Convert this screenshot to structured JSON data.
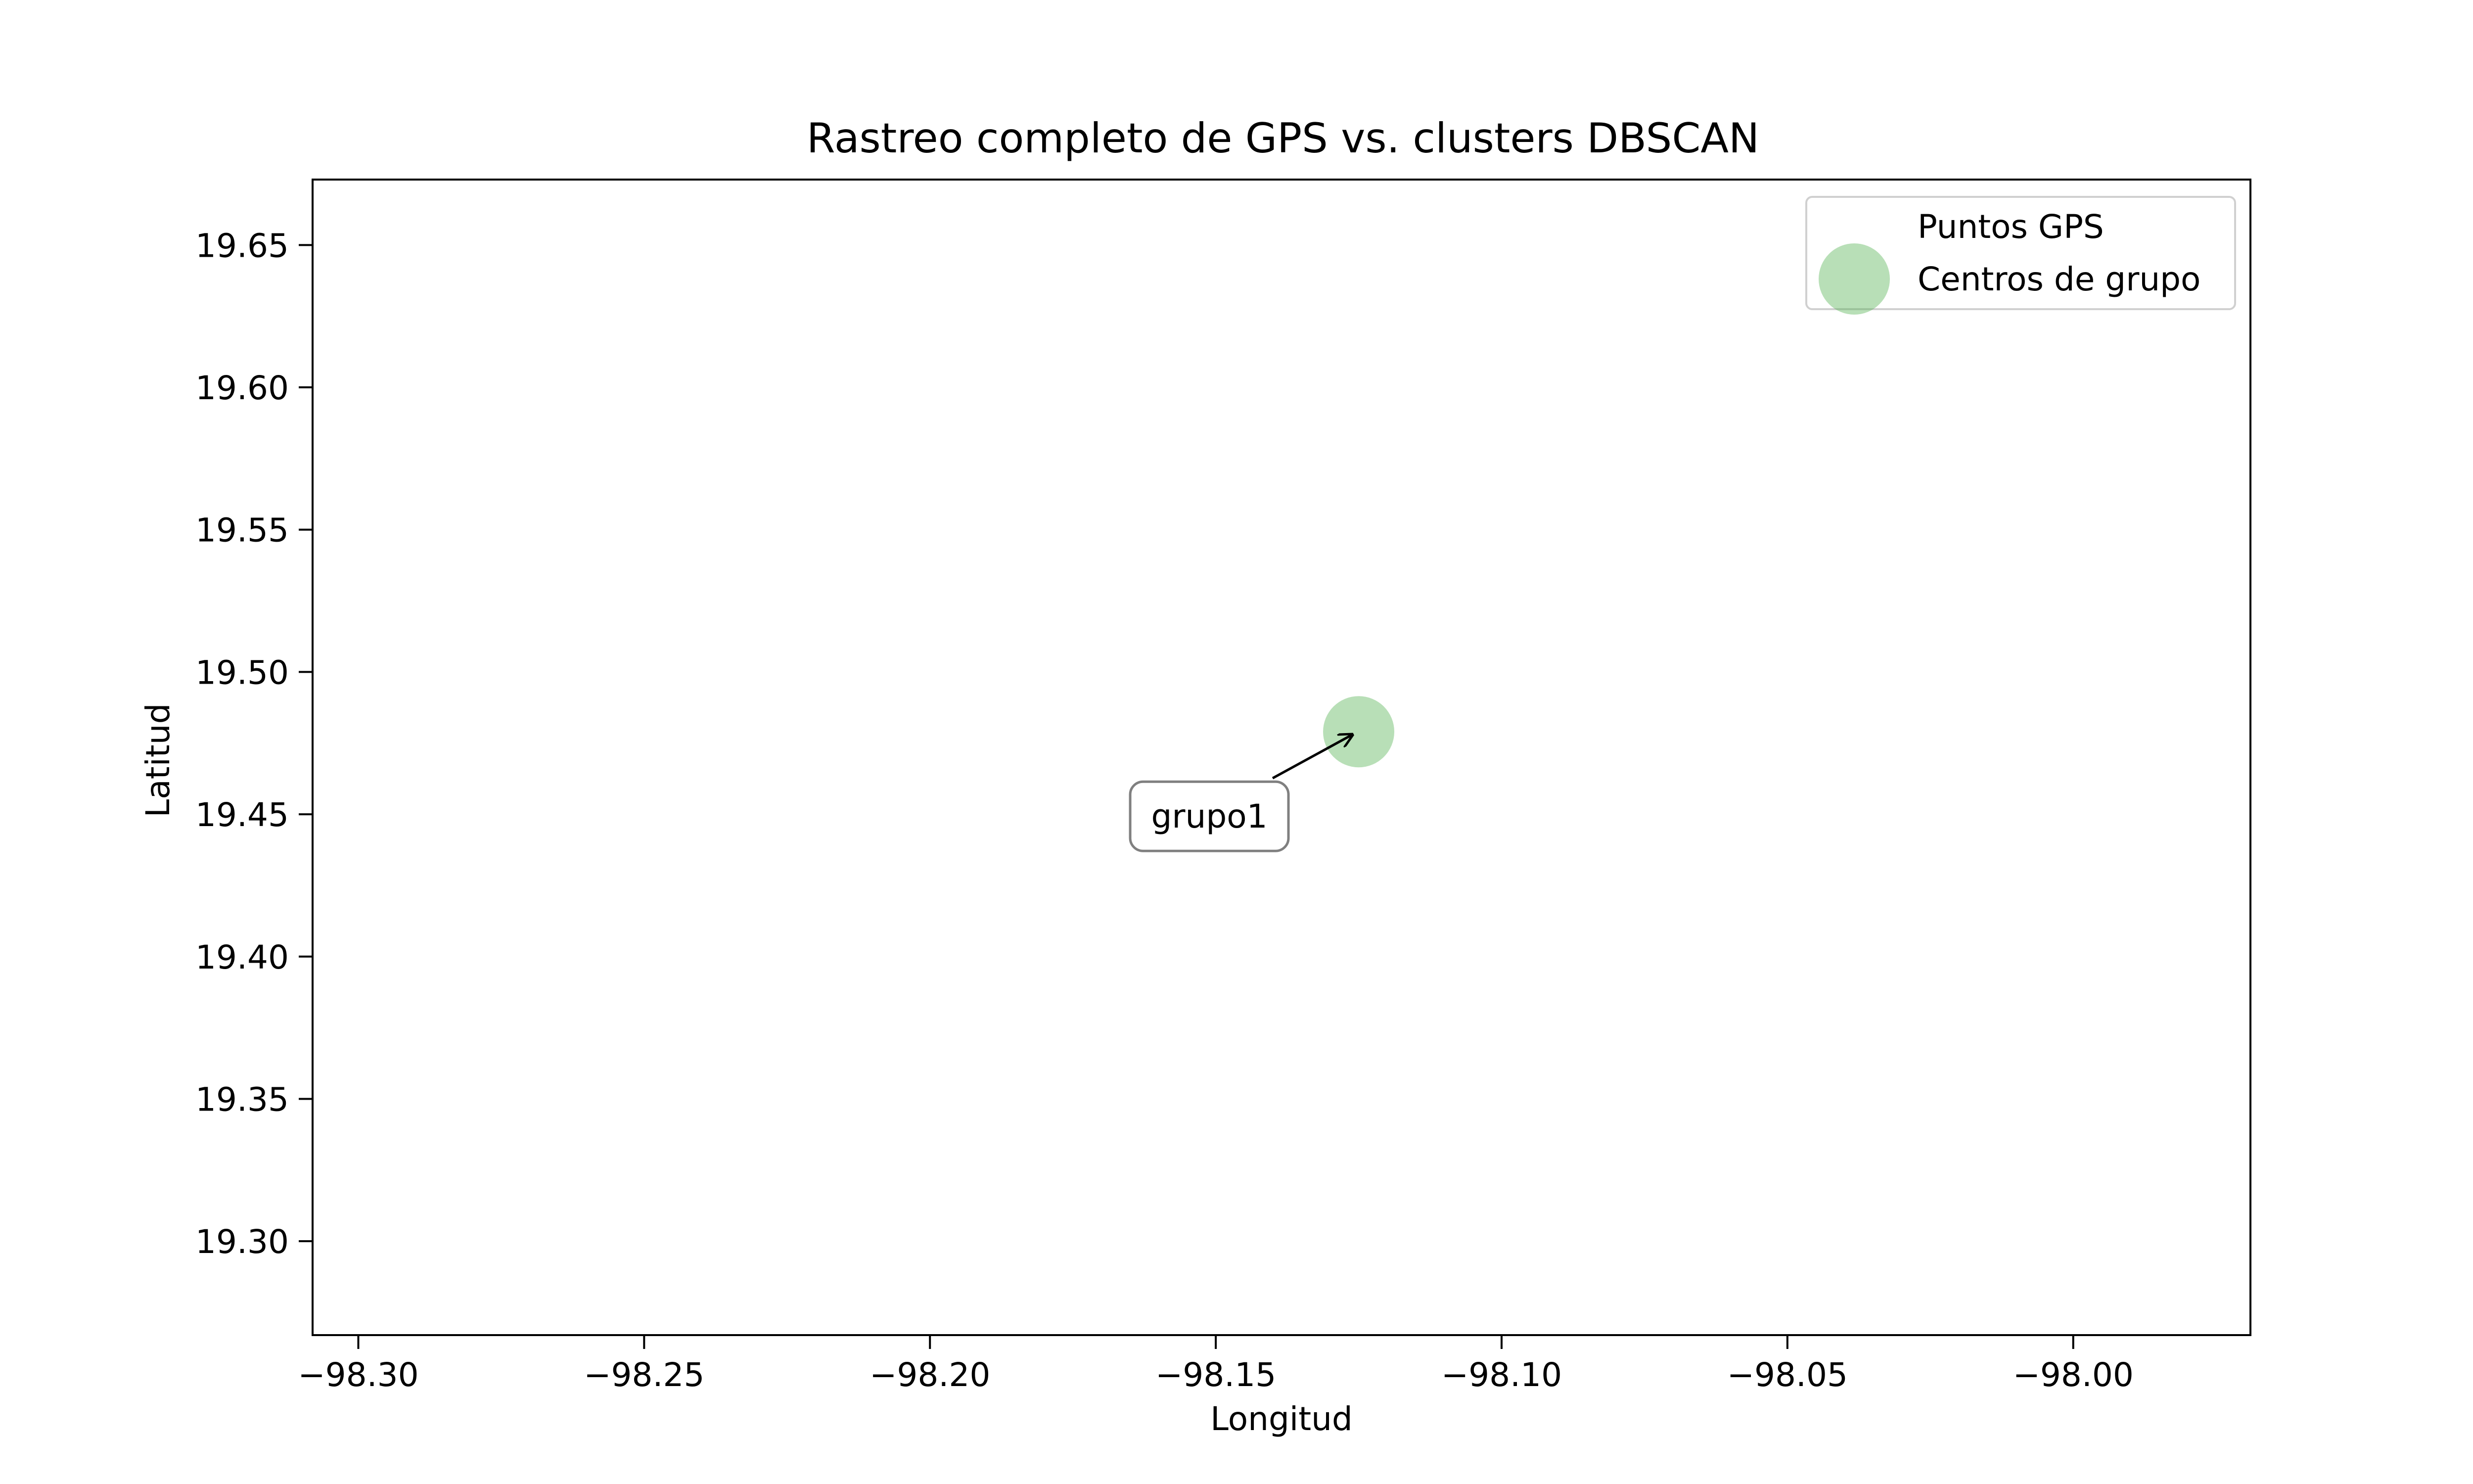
{
  "chart_data": {
    "type": "scatter",
    "title": "Rastreo completo de GPS vs. clusters DBSCAN",
    "xlabel": "Longitud",
    "ylabel": "Latitud",
    "xlim": [
      -98.308,
      -97.969
    ],
    "ylim": [
      19.267,
      19.673
    ],
    "xticks": [
      -98.3,
      -98.25,
      -98.2,
      -98.15,
      -98.1,
      -98.05,
      -98.0
    ],
    "xtick_labels": [
      "−98.30",
      "−98.25",
      "−98.20",
      "−98.15",
      "−98.10",
      "−98.05",
      "−98.00"
    ],
    "yticks": [
      19.3,
      19.35,
      19.4,
      19.45,
      19.5,
      19.55,
      19.6,
      19.65
    ],
    "ytick_labels": [
      "19.30",
      "19.35",
      "19.40",
      "19.45",
      "19.50",
      "19.55",
      "19.60",
      "19.65"
    ],
    "grid": false,
    "legend_position": "top-right",
    "series": [
      {
        "name": "Puntos GPS",
        "marker": "none",
        "points": []
      },
      {
        "name": "Centros de grupo",
        "marker": "circle",
        "color": "#4daf4a",
        "opacity": 0.4,
        "points": [
          {
            "x": -98.125,
            "y": 19.479,
            "label": "grupo1"
          }
        ]
      }
    ]
  }
}
